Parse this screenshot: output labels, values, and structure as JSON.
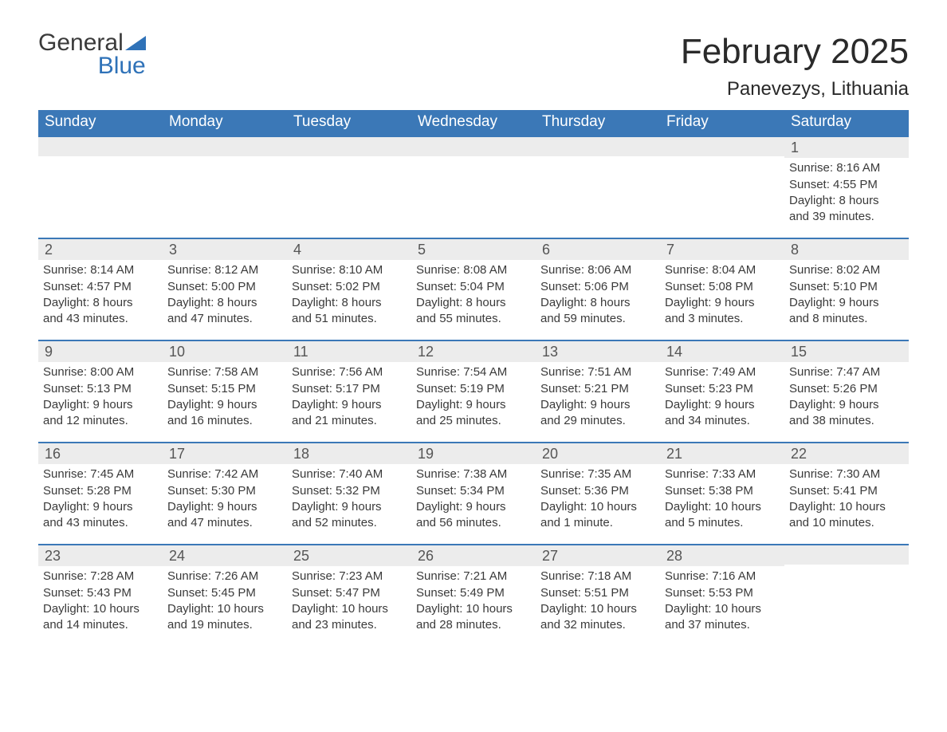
{
  "logo": {
    "word1": "General",
    "word2": "Blue",
    "shape_color": "#2f72b8",
    "general_color": "#3a3a3a",
    "blue_color": "#2f72b8"
  },
  "title": "February 2025",
  "location": "Panevezys, Lithuania",
  "colors": {
    "header_bg": "#3b78b7",
    "header_text": "#ffffff",
    "daynum_bg": "#ececec",
    "week_border": "#3b78b7",
    "body_text": "#3a3a3a",
    "background": "#ffffff"
  },
  "dow": [
    "Sunday",
    "Monday",
    "Tuesday",
    "Wednesday",
    "Thursday",
    "Friday",
    "Saturday"
  ],
  "weeks": [
    [
      {
        "empty": true
      },
      {
        "empty": true
      },
      {
        "empty": true
      },
      {
        "empty": true
      },
      {
        "empty": true
      },
      {
        "empty": true
      },
      {
        "n": "1",
        "sunrise": "Sunrise: 8:16 AM",
        "sunset": "Sunset: 4:55 PM",
        "d1": "Daylight: 8 hours",
        "d2": "and 39 minutes."
      }
    ],
    [
      {
        "n": "2",
        "sunrise": "Sunrise: 8:14 AM",
        "sunset": "Sunset: 4:57 PM",
        "d1": "Daylight: 8 hours",
        "d2": "and 43 minutes."
      },
      {
        "n": "3",
        "sunrise": "Sunrise: 8:12 AM",
        "sunset": "Sunset: 5:00 PM",
        "d1": "Daylight: 8 hours",
        "d2": "and 47 minutes."
      },
      {
        "n": "4",
        "sunrise": "Sunrise: 8:10 AM",
        "sunset": "Sunset: 5:02 PM",
        "d1": "Daylight: 8 hours",
        "d2": "and 51 minutes."
      },
      {
        "n": "5",
        "sunrise": "Sunrise: 8:08 AM",
        "sunset": "Sunset: 5:04 PM",
        "d1": "Daylight: 8 hours",
        "d2": "and 55 minutes."
      },
      {
        "n": "6",
        "sunrise": "Sunrise: 8:06 AM",
        "sunset": "Sunset: 5:06 PM",
        "d1": "Daylight: 8 hours",
        "d2": "and 59 minutes."
      },
      {
        "n": "7",
        "sunrise": "Sunrise: 8:04 AM",
        "sunset": "Sunset: 5:08 PM",
        "d1": "Daylight: 9 hours",
        "d2": "and 3 minutes."
      },
      {
        "n": "8",
        "sunrise": "Sunrise: 8:02 AM",
        "sunset": "Sunset: 5:10 PM",
        "d1": "Daylight: 9 hours",
        "d2": "and 8 minutes."
      }
    ],
    [
      {
        "n": "9",
        "sunrise": "Sunrise: 8:00 AM",
        "sunset": "Sunset: 5:13 PM",
        "d1": "Daylight: 9 hours",
        "d2": "and 12 minutes."
      },
      {
        "n": "10",
        "sunrise": "Sunrise: 7:58 AM",
        "sunset": "Sunset: 5:15 PM",
        "d1": "Daylight: 9 hours",
        "d2": "and 16 minutes."
      },
      {
        "n": "11",
        "sunrise": "Sunrise: 7:56 AM",
        "sunset": "Sunset: 5:17 PM",
        "d1": "Daylight: 9 hours",
        "d2": "and 21 minutes."
      },
      {
        "n": "12",
        "sunrise": "Sunrise: 7:54 AM",
        "sunset": "Sunset: 5:19 PM",
        "d1": "Daylight: 9 hours",
        "d2": "and 25 minutes."
      },
      {
        "n": "13",
        "sunrise": "Sunrise: 7:51 AM",
        "sunset": "Sunset: 5:21 PM",
        "d1": "Daylight: 9 hours",
        "d2": "and 29 minutes."
      },
      {
        "n": "14",
        "sunrise": "Sunrise: 7:49 AM",
        "sunset": "Sunset: 5:23 PM",
        "d1": "Daylight: 9 hours",
        "d2": "and 34 minutes."
      },
      {
        "n": "15",
        "sunrise": "Sunrise: 7:47 AM",
        "sunset": "Sunset: 5:26 PM",
        "d1": "Daylight: 9 hours",
        "d2": "and 38 minutes."
      }
    ],
    [
      {
        "n": "16",
        "sunrise": "Sunrise: 7:45 AM",
        "sunset": "Sunset: 5:28 PM",
        "d1": "Daylight: 9 hours",
        "d2": "and 43 minutes."
      },
      {
        "n": "17",
        "sunrise": "Sunrise: 7:42 AM",
        "sunset": "Sunset: 5:30 PM",
        "d1": "Daylight: 9 hours",
        "d2": "and 47 minutes."
      },
      {
        "n": "18",
        "sunrise": "Sunrise: 7:40 AM",
        "sunset": "Sunset: 5:32 PM",
        "d1": "Daylight: 9 hours",
        "d2": "and 52 minutes."
      },
      {
        "n": "19",
        "sunrise": "Sunrise: 7:38 AM",
        "sunset": "Sunset: 5:34 PM",
        "d1": "Daylight: 9 hours",
        "d2": "and 56 minutes."
      },
      {
        "n": "20",
        "sunrise": "Sunrise: 7:35 AM",
        "sunset": "Sunset: 5:36 PM",
        "d1": "Daylight: 10 hours",
        "d2": "and 1 minute."
      },
      {
        "n": "21",
        "sunrise": "Sunrise: 7:33 AM",
        "sunset": "Sunset: 5:38 PM",
        "d1": "Daylight: 10 hours",
        "d2": "and 5 minutes."
      },
      {
        "n": "22",
        "sunrise": "Sunrise: 7:30 AM",
        "sunset": "Sunset: 5:41 PM",
        "d1": "Daylight: 10 hours",
        "d2": "and 10 minutes."
      }
    ],
    [
      {
        "n": "23",
        "sunrise": "Sunrise: 7:28 AM",
        "sunset": "Sunset: 5:43 PM",
        "d1": "Daylight: 10 hours",
        "d2": "and 14 minutes."
      },
      {
        "n": "24",
        "sunrise": "Sunrise: 7:26 AM",
        "sunset": "Sunset: 5:45 PM",
        "d1": "Daylight: 10 hours",
        "d2": "and 19 minutes."
      },
      {
        "n": "25",
        "sunrise": "Sunrise: 7:23 AM",
        "sunset": "Sunset: 5:47 PM",
        "d1": "Daylight: 10 hours",
        "d2": "and 23 minutes."
      },
      {
        "n": "26",
        "sunrise": "Sunrise: 7:21 AM",
        "sunset": "Sunset: 5:49 PM",
        "d1": "Daylight: 10 hours",
        "d2": "and 28 minutes."
      },
      {
        "n": "27",
        "sunrise": "Sunrise: 7:18 AM",
        "sunset": "Sunset: 5:51 PM",
        "d1": "Daylight: 10 hours",
        "d2": "and 32 minutes."
      },
      {
        "n": "28",
        "sunrise": "Sunrise: 7:16 AM",
        "sunset": "Sunset: 5:53 PM",
        "d1": "Daylight: 10 hours",
        "d2": "and 37 minutes."
      },
      {
        "empty": true
      }
    ]
  ]
}
